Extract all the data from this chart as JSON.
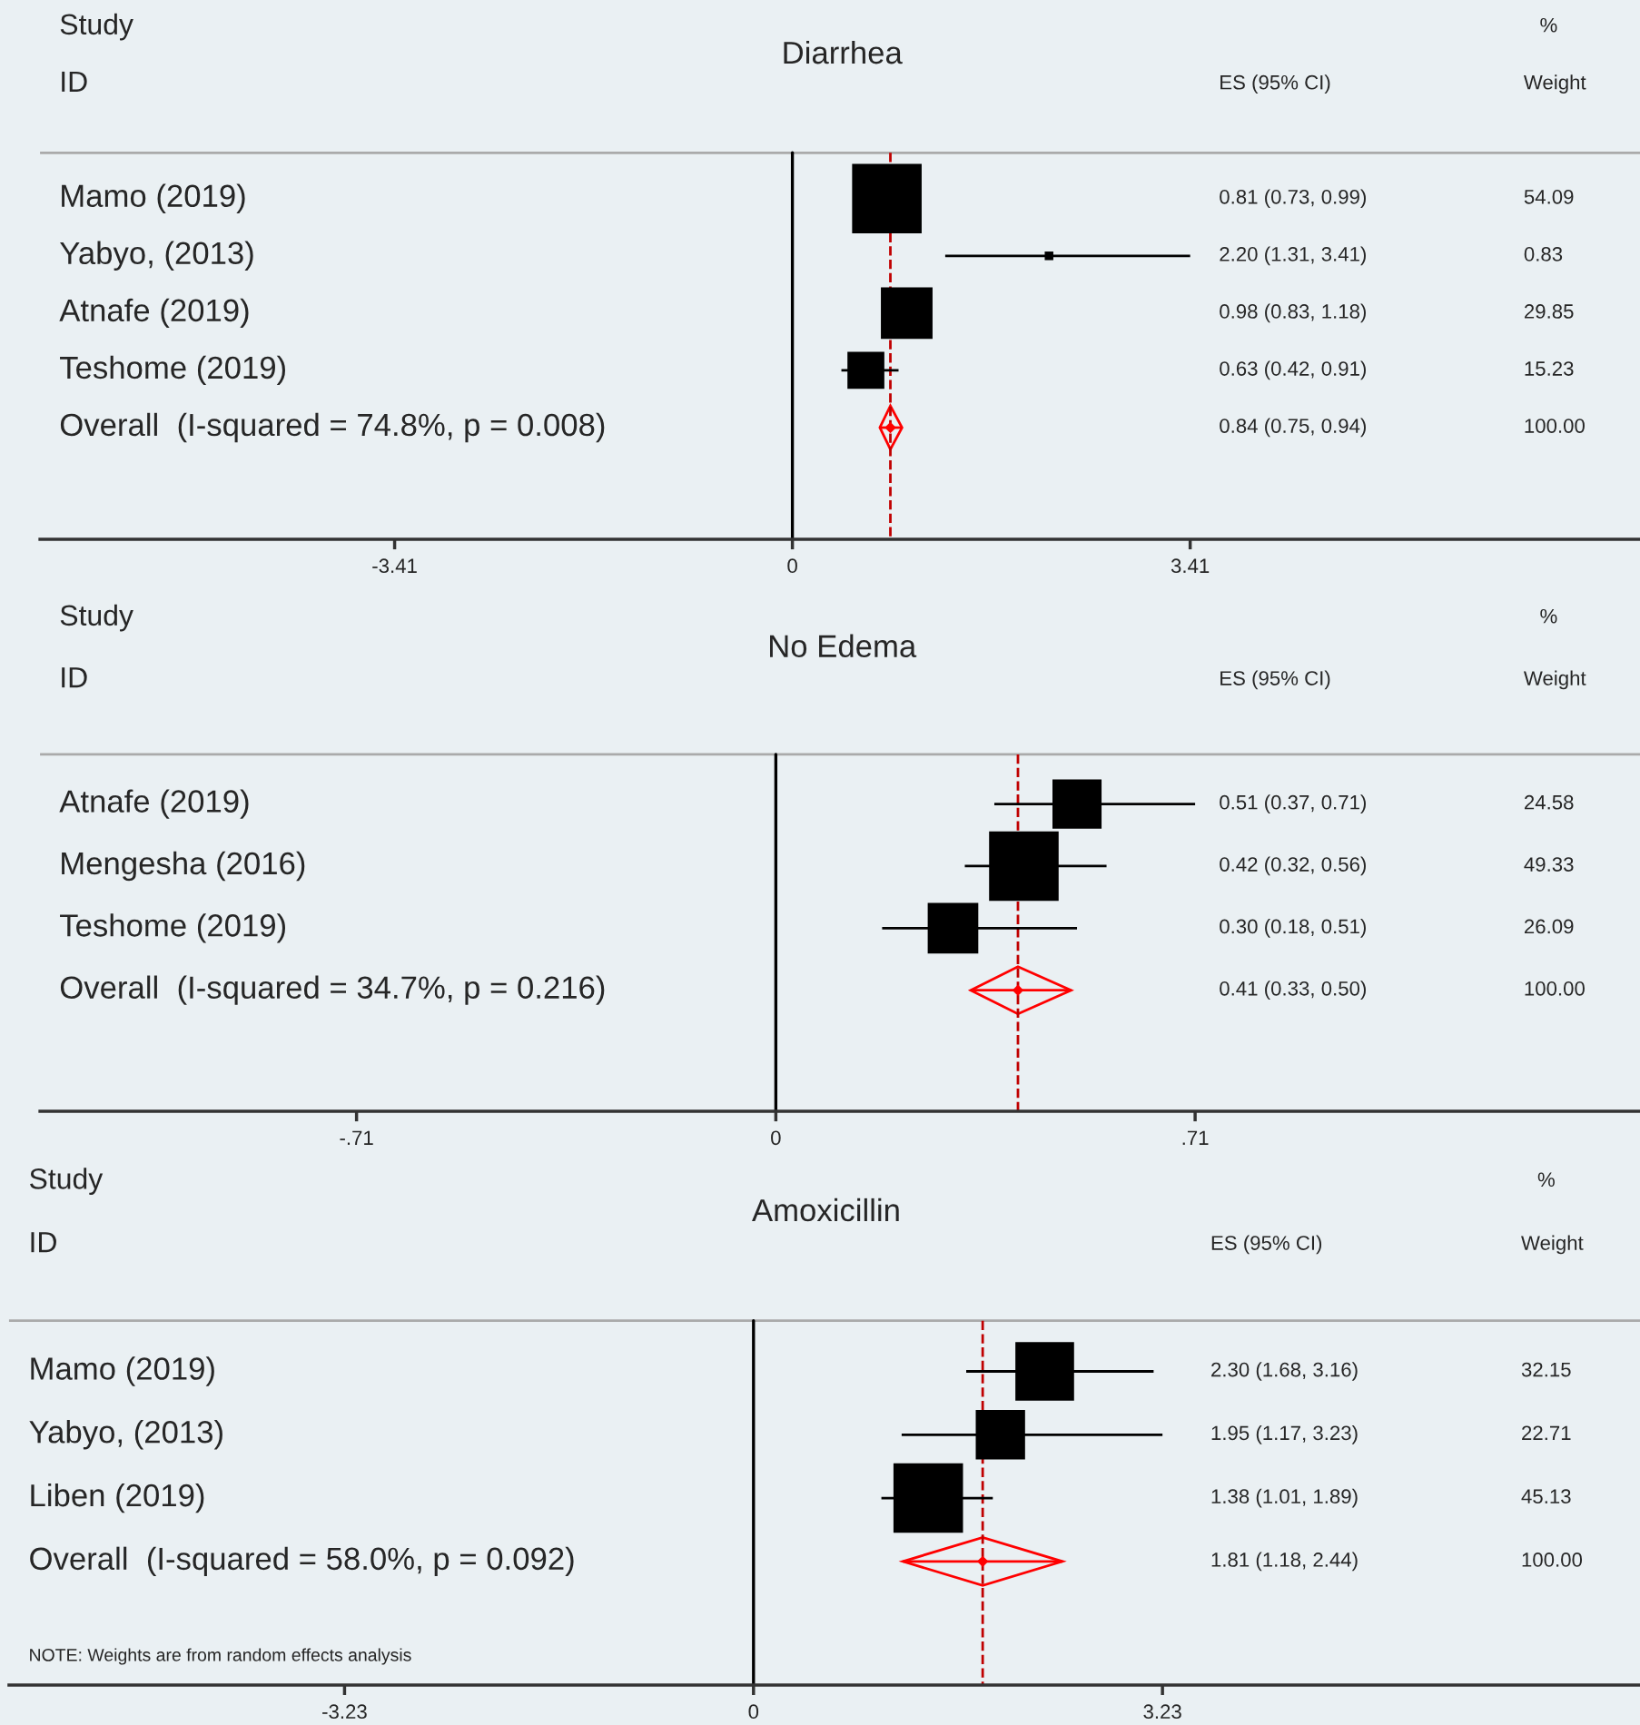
{
  "chart_data": [
    {
      "type": "bubble",
      "title": "Diarrhea",
      "orientation": "horizontal",
      "marker": "square",
      "categories": [
        "Mamo (2019)",
        "Yabyo, (2013)",
        "Atnafe (2019)",
        "Teshome (2019)",
        "Overall  (I-squared = 74.8%, p = 0.008)"
      ],
      "xlim": [
        -6.45,
        7.3
      ],
      "xticks": [
        -3.41,
        0,
        3.41
      ],
      "annotations": [
        "Study",
        "ID",
        "ES (95% CI)",
        "%",
        "Weight",
        "0.81 (0.73, 0.99)",
        "2.20 (1.31, 3.41)",
        "0.98 (0.83, 1.18)",
        "0.63 (0.42, 0.91)",
        "0.84 (0.75, 0.94)",
        "54.09",
        "0.83",
        "29.85",
        "15.23",
        "100.00"
      ],
      "ref_lines": [
        {
          "axis": "x",
          "value": 0,
          "color": "#000000",
          "line_style": "solid"
        },
        {
          "axis": "x",
          "value": 0.84,
          "color": "#c00000",
          "line_style": "dashed"
        }
      ],
      "series": [
        {
          "color": "#000000",
          "values": [
            0.81,
            2.2,
            0.98,
            0.63,
            null
          ],
          "errors": [
            null,
            [
              1.31,
              3.41
            ],
            null,
            [
              0.42,
              0.91
            ],
            null
          ],
          "sizes": [
            1,
            0.0153,
            0.5519,
            0.2816,
            null
          ]
        },
        {
          "type": "scatter",
          "marker": "diamond",
          "color": "#ff0000",
          "values": [
            null,
            null,
            null,
            null,
            0.84
          ],
          "errors": [
            null,
            null,
            null,
            null,
            [
              0.75,
              0.94
            ]
          ]
        }
      ]
    },
    {
      "type": "bubble",
      "title": "No Edema",
      "orientation": "horizontal",
      "marker": "square",
      "categories": [
        "Atnafe (2019)",
        "Mengesha (2016)",
        "Teshome (2019)",
        "Overall  (I-squared = 34.7%, p = 0.216)"
      ],
      "xlim": [
        -1.246,
        1.47
      ],
      "xticks": [
        {
          "value": -0.71,
          "label": "-.71"
        },
        0,
        {
          "value": 0.71,
          "label": ".71"
        }
      ],
      "annotations": [
        "Study",
        "ID",
        "ES (95% CI)",
        "%",
        "Weight",
        "0.51 (0.37, 0.71)",
        "0.42 (0.32, 0.56)",
        "0.30 (0.18, 0.51)",
        "0.41 (0.33, 0.50)",
        "24.58",
        "49.33",
        "26.09",
        "100.00"
      ],
      "ref_lines": [
        {
          "axis": "x",
          "value": 0,
          "color": "#000000",
          "line_style": "solid"
        },
        {
          "axis": "x",
          "value": 0.41,
          "color": "#c00000",
          "line_style": "dashed"
        }
      ],
      "series": [
        {
          "color": "#000000",
          "values": [
            0.51,
            0.42,
            0.3,
            null
          ],
          "errors": [
            [
              0.37,
              0.71
            ],
            [
              0.32,
              0.56
            ],
            [
              0.18,
              0.51
            ],
            null
          ],
          "sizes": [
            0.4983,
            1,
            0.5289,
            null
          ]
        },
        {
          "type": "scatter",
          "marker": "diamond",
          "color": "#ff0000",
          "values": [
            null,
            null,
            null,
            0.41
          ],
          "errors": [
            null,
            null,
            null,
            [
              0.33,
              0.5
            ]
          ]
        }
      ]
    },
    {
      "type": "bubble",
      "title": "Amoxicillin",
      "orientation": "horizontal",
      "marker": "square",
      "categories": [
        "Mamo (2019)",
        "Yabyo, (2013)",
        "Liben (2019)",
        "Overall  (I-squared = 58.0%, p = 0.092)"
      ],
      "xlim": [
        -5.88,
        7.03
      ],
      "xticks": [
        -3.23,
        0,
        3.23
      ],
      "annotations": [
        "Study",
        "ID",
        "ES (95% CI)",
        "%",
        "Weight",
        "2.30 (1.68, 3.16)",
        "1.95 (1.17, 3.23)",
        "1.38 (1.01, 1.89)",
        "1.81 (1.18, 2.44)",
        "32.15",
        "22.71",
        "45.13",
        "100.00",
        "NOTE: Weights are from random effects analysis"
      ],
      "ref_lines": [
        {
          "axis": "x",
          "value": 0,
          "color": "#000000",
          "line_style": "solid"
        },
        {
          "axis": "x",
          "value": 1.81,
          "color": "#c00000",
          "line_style": "dashed"
        }
      ],
      "series": [
        {
          "color": "#000000",
          "values": [
            2.3,
            1.95,
            1.38,
            null
          ],
          "errors": [
            [
              1.68,
              3.16
            ],
            [
              1.17,
              3.23
            ],
            [
              1.01,
              1.89
            ],
            null
          ],
          "sizes": [
            0.7124,
            0.5032,
            1,
            null
          ]
        },
        {
          "type": "scatter",
          "marker": "diamond",
          "color": "#ff0000",
          "values": [
            null,
            null,
            null,
            1.81
          ],
          "errors": [
            null,
            null,
            null,
            [
              1.18,
              2.44
            ]
          ]
        }
      ]
    }
  ]
}
